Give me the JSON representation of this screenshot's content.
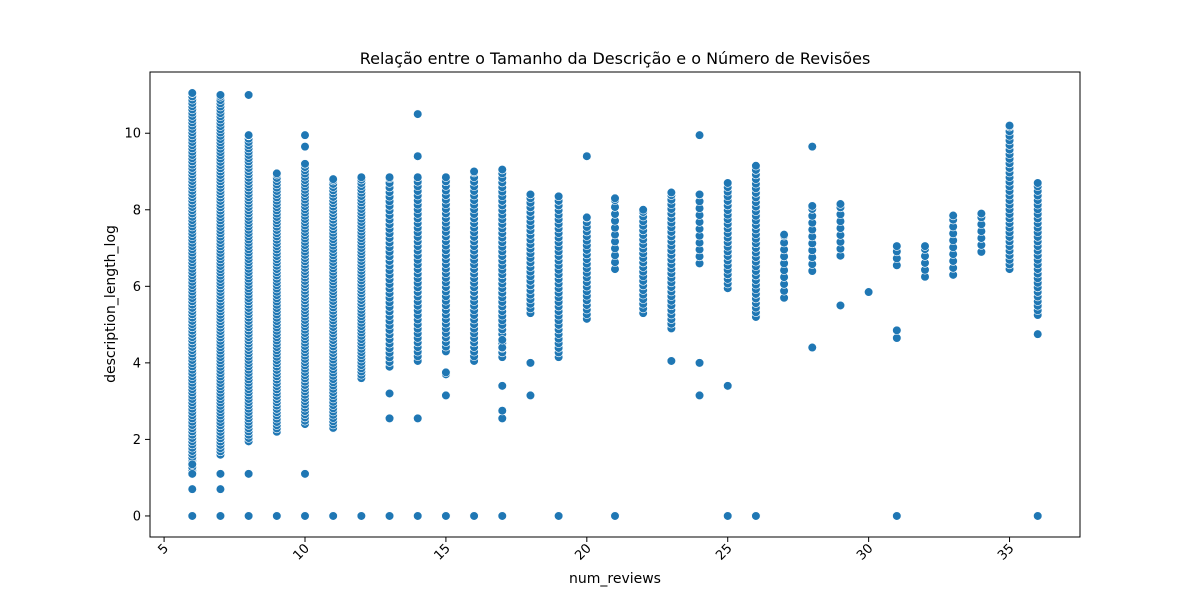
{
  "chart_data": {
    "type": "scatter",
    "title": "Relação entre o Tamanho da Descrição e o Número de Revisões",
    "xlabel": "num_reviews",
    "ylabel": "description_length_log",
    "xlim": [
      4.5,
      37.5
    ],
    "ylim": [
      -0.55,
      11.6
    ],
    "xticks": [
      5,
      10,
      15,
      20,
      25,
      30,
      35
    ],
    "yticks": [
      0,
      2,
      4,
      6,
      8,
      10
    ],
    "grid": false,
    "marker_color": "#1f77b4",
    "columns": [
      {
        "x": 6,
        "min": 1.1,
        "max": 11.05,
        "extra": [
          0,
          0.7,
          1.1,
          1.35
        ]
      },
      {
        "x": 7,
        "min": 1.6,
        "max": 11.0,
        "extra": [
          0,
          0.7,
          1.1
        ]
      },
      {
        "x": 8,
        "min": 1.95,
        "max": 9.95,
        "extra": [
          0,
          1.1,
          11.0
        ]
      },
      {
        "x": 9,
        "min": 2.2,
        "max": 8.95,
        "extra": [
          0
        ]
      },
      {
        "x": 10,
        "min": 2.4,
        "max": 9.2,
        "extra": [
          0,
          1.1,
          9.65,
          9.95
        ]
      },
      {
        "x": 11,
        "min": 2.3,
        "max": 8.8,
        "extra": [
          0
        ]
      },
      {
        "x": 12,
        "min": 3.6,
        "max": 8.85,
        "extra": [
          0
        ]
      },
      {
        "x": 13,
        "min": 3.9,
        "max": 8.85,
        "extra": [
          0,
          2.55,
          3.2
        ]
      },
      {
        "x": 14,
        "min": 4.05,
        "max": 8.85,
        "extra": [
          0,
          2.55,
          9.4,
          10.5
        ]
      },
      {
        "x": 15,
        "min": 4.3,
        "max": 8.85,
        "extra": [
          0,
          3.15,
          3.7,
          3.75
        ]
      },
      {
        "x": 16,
        "min": 4.05,
        "max": 9.0,
        "extra": [
          0
        ]
      },
      {
        "x": 17,
        "min": 4.15,
        "max": 9.05,
        "extra": [
          0,
          2.55,
          2.75,
          3.4,
          4.4,
          4.6
        ]
      },
      {
        "x": 18,
        "min": 5.3,
        "max": 8.4,
        "extra": [
          3.15,
          4.0
        ]
      },
      {
        "x": 19,
        "min": 4.15,
        "max": 8.35,
        "extra": [
          0
        ]
      },
      {
        "x": 20,
        "min": 5.15,
        "max": 7.8,
        "extra": [
          9.4
        ]
      },
      {
        "x": 21,
        "min": 6.45,
        "max": 8.3,
        "extra": [
          0
        ]
      },
      {
        "x": 22,
        "min": 5.3,
        "max": 8.0,
        "extra": []
      },
      {
        "x": 23,
        "min": 4.9,
        "max": 8.45,
        "extra": [
          4.05
        ]
      },
      {
        "x": 24,
        "min": 6.6,
        "max": 8.4,
        "extra": [
          3.15,
          4.0,
          9.95
        ]
      },
      {
        "x": 25,
        "min": 5.95,
        "max": 8.7,
        "extra": [
          0,
          3.4
        ]
      },
      {
        "x": 26,
        "min": 5.2,
        "max": 9.15,
        "extra": [
          0
        ]
      },
      {
        "x": 27,
        "min": 5.7,
        "max": 7.35,
        "extra": []
      },
      {
        "x": 28,
        "min": 6.4,
        "max": 8.1,
        "extra": [
          4.4,
          9.65
        ]
      },
      {
        "x": 29,
        "min": 6.8,
        "max": 8.15,
        "extra": [
          5.5
        ]
      },
      {
        "x": 30,
        "min": 5.85,
        "max": 5.85,
        "extra": []
      },
      {
        "x": 31,
        "min": 6.55,
        "max": 7.05,
        "extra": [
          0,
          4.65,
          4.85
        ]
      },
      {
        "x": 32,
        "min": 6.25,
        "max": 7.05,
        "extra": []
      },
      {
        "x": 33,
        "min": 6.3,
        "max": 7.85,
        "extra": []
      },
      {
        "x": 34,
        "min": 6.9,
        "max": 7.9,
        "extra": []
      },
      {
        "x": 35,
        "min": 6.45,
        "max": 10.2,
        "extra": []
      },
      {
        "x": 36,
        "min": 5.25,
        "max": 8.7,
        "extra": [
          0,
          4.75
        ]
      }
    ]
  }
}
